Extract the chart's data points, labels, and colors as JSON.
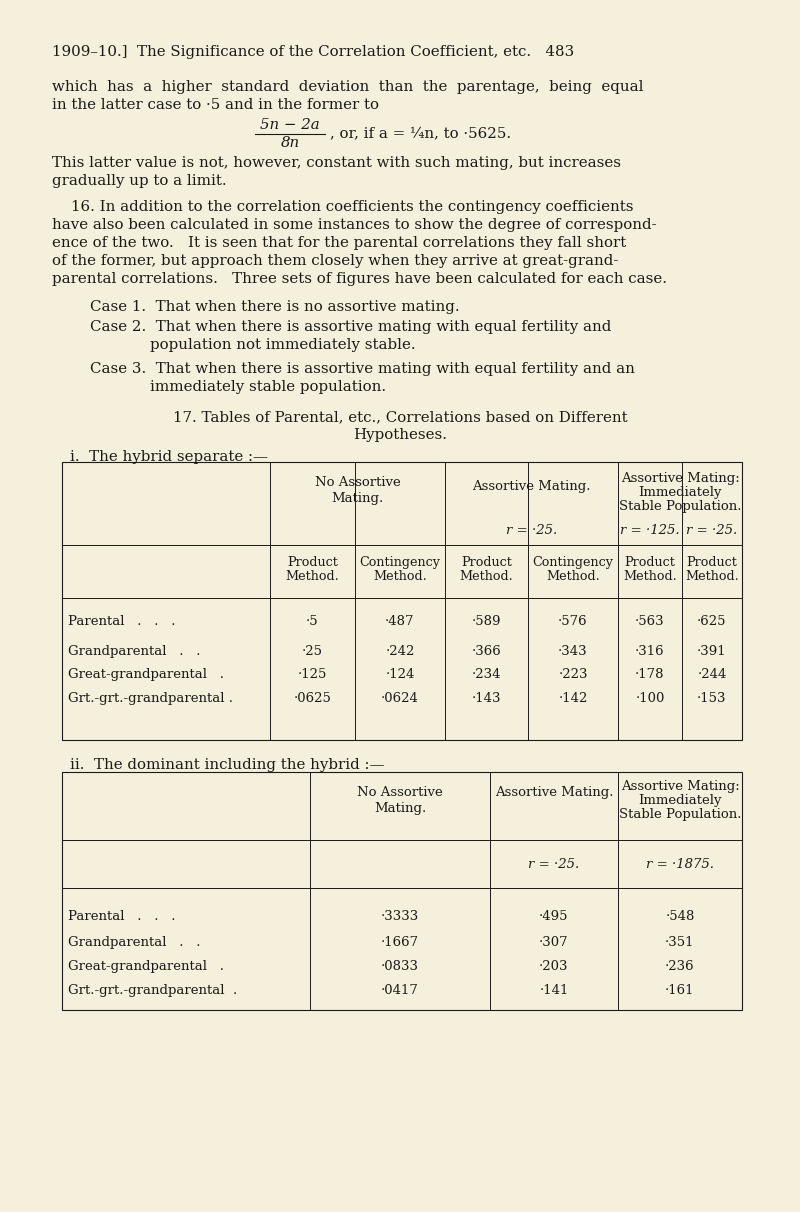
{
  "bg_color": "#f5f0dc",
  "text_color": "#1a1a1a",
  "page_header": "1909–10.]  The Significance of the Correlation Coefficient, etc.   483",
  "para1_line1": "which  has  a  higher  standard  deviation  than  the  parentage,  being  equal",
  "para1_line2": "in the latter case to ·5 and in the former to",
  "formula_num": "5n − 2a",
  "formula_den": "8n",
  "formula_rest": ", or, if a = ¼n, to ·5625.",
  "para2_line1": "This latter value is not, however, constant with such mating, but increases",
  "para2_line2": "gradually up to a limit.",
  "para3_line1": "    16. In addition to the correlation coefficients the contingency coefficients",
  "para3_line2": "have also been calculated in some instances to show the degree of correspond-",
  "para3_line3": "ence of the two.   It is seen that for the parental correlations they fall short",
  "para3_line4": "of the former, but approach them closely when they arrive at great-grand-",
  "para3_line5": "parental correlations.   Three sets of figures have been calculated for each case.",
  "case1": "Case 1.  That when there is no assortive mating.",
  "case2a": "Case 2.  That when there is assortive mating with equal fertility and",
  "case2b": "population not immediately stable.",
  "case3a": "Case 3.  That when there is assortive mating with equal fertility and an",
  "case3b": "immediately stable population.",
  "sec17_a": "17. Tables of Parental, etc., Correlations based on Different",
  "sec17_b": "Hypotheses.",
  "subsec_i": "i.  The hybrid separate :—",
  "subsec_ii": "ii.  The dominant including the hybrid :—",
  "t1_rows": [
    [
      "Parental   .   .   .",
      "·5",
      "·487",
      "·589",
      "·576",
      "·563",
      "·625"
    ],
    [
      "Grandparental   .   .",
      "·25",
      "·242",
      "·366",
      "·343",
      "·316",
      "·391"
    ],
    [
      "Great-grandparental   .",
      "·125",
      "·124",
      "·234",
      "·223",
      "·178",
      "·244"
    ],
    [
      "Grt.-grt.-grandparental .",
      "·0625",
      "·0624",
      "·143",
      "·142",
      "·100",
      "·153"
    ]
  ],
  "t2_rows": [
    [
      "Parental   .   .   .",
      "·3333",
      "·495",
      "·548"
    ],
    [
      "Grandparental   .   .",
      "·1667",
      "·307",
      "·351"
    ],
    [
      "Great-grandparental   .",
      "·0833",
      "·203",
      "·236"
    ],
    [
      "Grt.-grt.-grandparental  .",
      "·0417",
      "·141",
      "·161"
    ]
  ]
}
